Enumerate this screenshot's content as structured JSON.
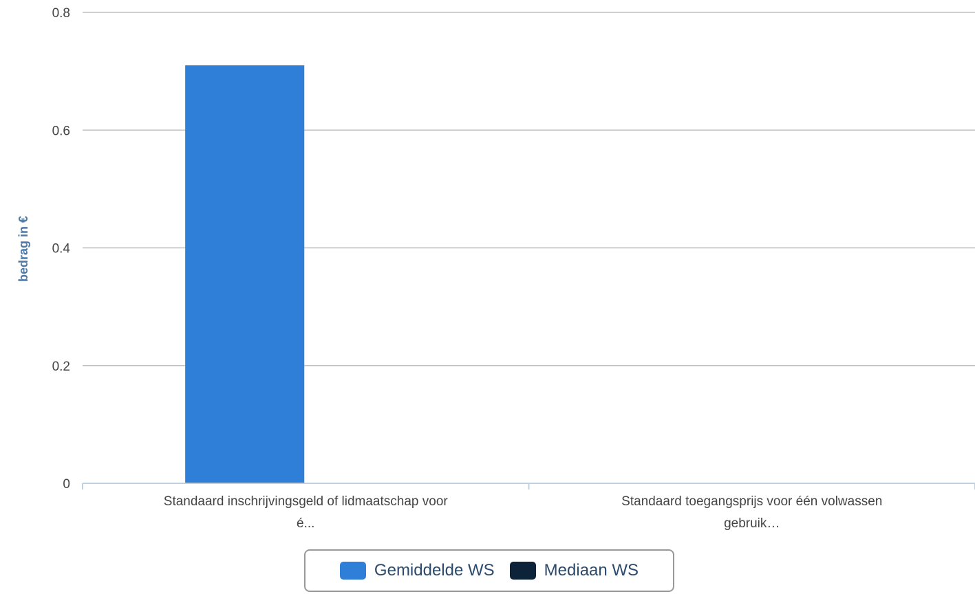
{
  "chart_data": {
    "type": "bar",
    "categories": [
      [
        "Standaard inschrijvingsgeld of lidmaatschap voor",
        "é..."
      ],
      [
        "Standaard toegangsprijs voor één volwassen",
        "gebruik…"
      ]
    ],
    "series": [
      {
        "name": "Gemiddelde WS",
        "color": "#2f7ed8",
        "values": [
          0.71,
          0
        ]
      },
      {
        "name": "Mediaan WS",
        "color": "#0d233a",
        "values": [
          0,
          0
        ]
      }
    ],
    "ylabel": "bedrag in €",
    "ylim": [
      0,
      0.8
    ],
    "yticks": [
      "0",
      "0.2",
      "0.4",
      "0.6",
      "0.8"
    ],
    "ytick_values": [
      0,
      0.2,
      0.4,
      0.6,
      0.8
    ],
    "grid": true,
    "legend_position": "bottom-center"
  }
}
